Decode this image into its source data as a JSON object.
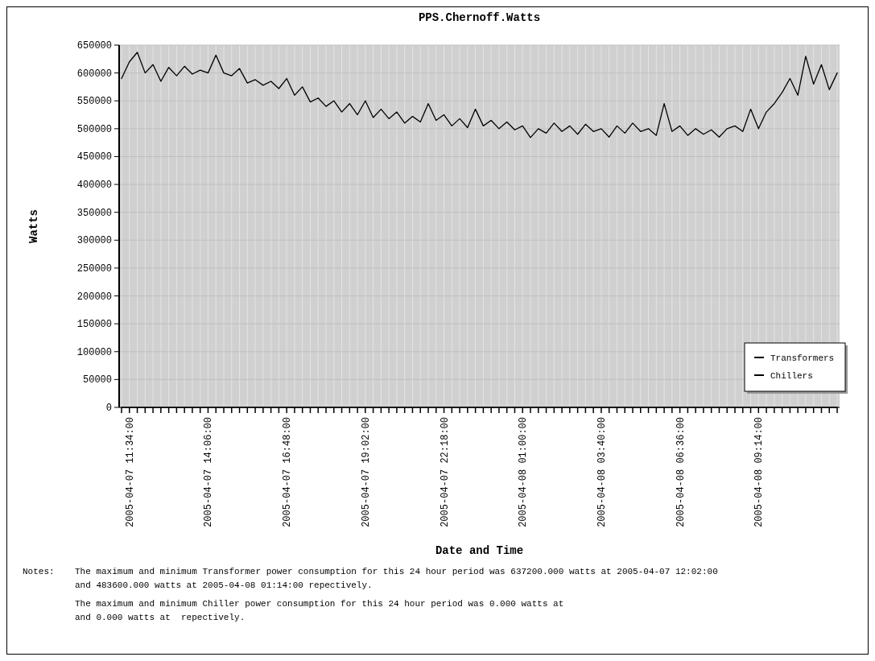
{
  "chart_data": {
    "type": "line",
    "title": "PPS.Chernoff.Watts",
    "xlabel": "Date and Time",
    "ylabel": "Watts",
    "categories": [
      null,
      "2005-04-07 11:34:00",
      null,
      null,
      null,
      null,
      null,
      null,
      null,
      null,
      null,
      "2005-04-07 14:06:00",
      null,
      null,
      null,
      null,
      null,
      null,
      null,
      null,
      null,
      "2005-04-07 16:48:00",
      null,
      null,
      null,
      null,
      null,
      null,
      null,
      null,
      null,
      "2005-04-07 19:02:00",
      null,
      null,
      null,
      null,
      null,
      null,
      null,
      null,
      null,
      "2005-04-07 22:18:00",
      null,
      null,
      null,
      null,
      null,
      null,
      null,
      null,
      null,
      "2005-04-08 01:00:00",
      null,
      null,
      null,
      null,
      null,
      null,
      null,
      null,
      null,
      "2005-04-08 03:40:00",
      null,
      null,
      null,
      null,
      null,
      null,
      null,
      null,
      null,
      "2005-04-08 06:36:00",
      null,
      null,
      null,
      null,
      null,
      null,
      null,
      null,
      null,
      "2005-04-08 09:14:00",
      null,
      null,
      null,
      null,
      null,
      null,
      null,
      null,
      null,
      null
    ],
    "series": [
      {
        "name": "Transformers",
        "color": "#000000",
        "values": [
          590000,
          620000,
          637000,
          600000,
          615000,
          585000,
          610000,
          595000,
          612000,
          598000,
          605000,
          600000,
          632000,
          600000,
          595000,
          608000,
          582000,
          588000,
          578000,
          585000,
          572000,
          590000,
          560000,
          575000,
          548000,
          555000,
          540000,
          550000,
          530000,
          545000,
          525000,
          550000,
          520000,
          535000,
          518000,
          530000,
          510000,
          522000,
          512000,
          545000,
          515000,
          525000,
          505000,
          518000,
          502000,
          535000,
          505000,
          515000,
          500000,
          512000,
          498000,
          505000,
          484000,
          500000,
          492000,
          510000,
          495000,
          505000,
          490000,
          508000,
          495000,
          500000,
          485000,
          505000,
          492000,
          510000,
          495000,
          500000,
          488000,
          545000,
          495000,
          505000,
          488000,
          500000,
          490000,
          498000,
          485000,
          500000,
          505000,
          495000,
          535000,
          500000,
          530000,
          545000,
          565000,
          590000,
          560000,
          630000,
          580000,
          615000,
          570000,
          600000
        ]
      },
      {
        "name": "Chillers",
        "color": "#000000",
        "values": [
          0,
          0,
          0,
          0,
          0,
          0,
          0,
          0,
          0,
          0,
          0,
          0,
          0,
          0,
          0,
          0,
          0,
          0,
          0,
          0,
          0,
          0,
          0,
          0,
          0,
          0,
          0,
          0,
          0,
          0,
          0,
          0,
          0,
          0,
          0,
          0,
          0,
          0,
          0,
          0,
          0,
          0,
          0,
          0,
          0,
          0,
          0,
          0,
          0,
          0,
          0,
          0,
          0,
          0,
          0,
          0,
          0,
          0,
          0,
          0,
          0,
          0,
          0,
          0,
          0,
          0,
          0,
          0,
          0,
          0,
          0,
          0,
          0,
          0,
          0,
          0,
          0,
          0,
          0,
          0,
          0,
          0,
          0,
          0,
          0,
          0,
          0,
          0,
          0,
          0,
          0,
          0
        ]
      }
    ],
    "ylim": [
      0,
      650000
    ],
    "yticks": [
      0,
      50000,
      100000,
      150000,
      200000,
      250000,
      300000,
      350000,
      400000,
      450000,
      500000,
      550000,
      600000,
      650000
    ],
    "grid": true,
    "legend": "bottom right",
    "annotations": [
      "Notes:",
      "The maximum and minimum Transformer power consumption for this 24 hour period was 637200.000 watts at 2005-04-07 12:02:00",
      "and 483600.000 watts at 2005-04-08 01:14:00 repectively.",
      "The maximum and minimum Chiller power consumption for this 24 hour period was 0.000 watts at",
      "and 0.000 watts at  repectively."
    ]
  }
}
